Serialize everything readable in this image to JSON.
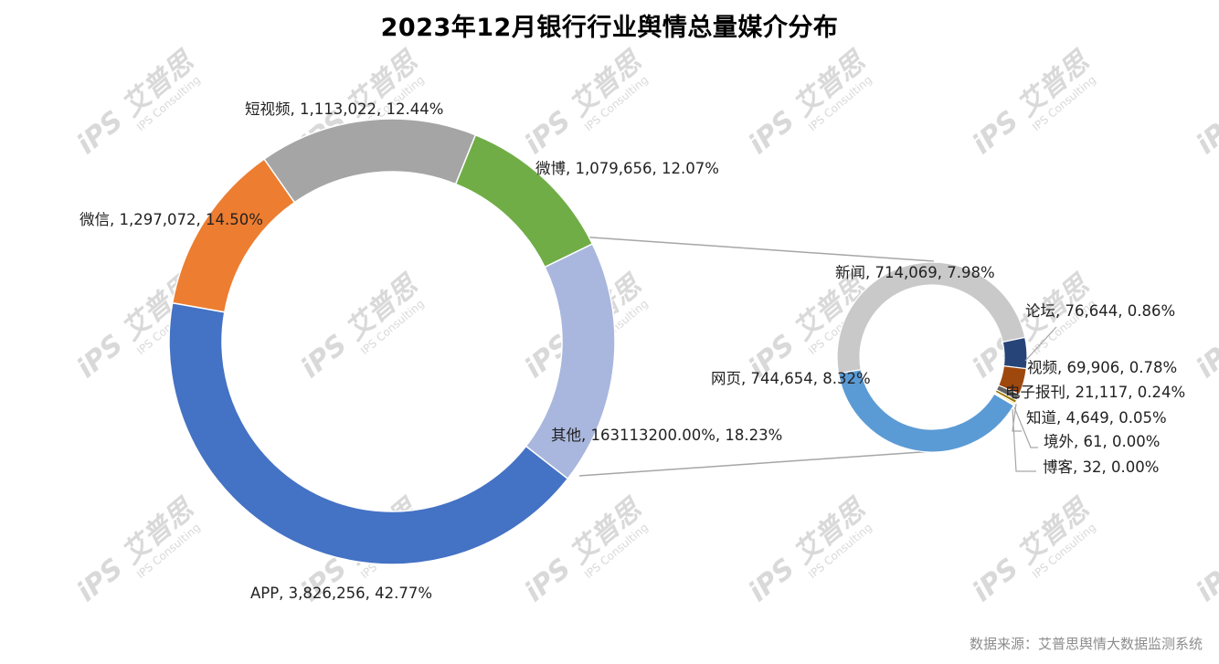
{
  "title": "2023年12月银行行业舆情总量媒介分布",
  "source": "数据来源：艾普思舆情大数据监测系统",
  "watermark": {
    "brand": "艾普思",
    "sub": "IPS Consulting"
  },
  "chart_data": {
    "type": "pie-of-pie",
    "title": "2023年12月银行行业舆情总量媒介分布",
    "main": [
      {
        "name": "APP",
        "value": 3826256,
        "label": "APP, 3,826,256, 42.77%",
        "color": "#4472C4",
        "pct": 42.77
      },
      {
        "name": "微信",
        "value": 1297072,
        "label": "微信, 1,297,072, 14.50%",
        "color": "#ED7D31",
        "pct": 14.5
      },
      {
        "name": "短视频",
        "value": 1113022,
        "label": "短视频, 1,113,022, 12.44%",
        "color": "#A5A5A5",
        "pct": 12.44
      },
      {
        "name": "微博",
        "value": 1079656,
        "label": "微博, 1,079,656, 12.07%",
        "color": "#70AD47",
        "pct": 12.07
      },
      {
        "name": "其他",
        "value": 1631132,
        "label": "其他, 163113200.00%, 18.23%",
        "color": "#A9B7DE",
        "pct": 18.23
      }
    ],
    "secondary": [
      {
        "name": "新闻",
        "value": 714069,
        "label": "新闻, 714,069, 7.98%",
        "color": "#C9C9C9",
        "pct": 7.98
      },
      {
        "name": "论坛",
        "value": 76644,
        "label": "论坛, 76,644, 0.86%",
        "color": "#264478",
        "pct": 0.86
      },
      {
        "name": "视频",
        "value": 69906,
        "label": "视频, 69,906, 0.78%",
        "color": "#9E480E",
        "pct": 0.78
      },
      {
        "name": "电子报刊",
        "value": 21117,
        "label": "电子报刊, 21,117, 0.24%",
        "color": "#636363",
        "pct": 0.24
      },
      {
        "name": "知道",
        "value": 4649,
        "label": "知道, 4,649, 0.05%",
        "color": "#997300",
        "pct": 0.05
      },
      {
        "name": "境外",
        "value": 61,
        "label": "境外, 61, 0.00%",
        "color": "#FFC000",
        "pct": 0.0
      },
      {
        "name": "博客",
        "value": 32,
        "label": "博客, 32, 0.00%",
        "color": "#FFD966",
        "pct": 0.0
      },
      {
        "name": "网页",
        "value": 744654,
        "label": "网页, 744,654, 8.32%",
        "color": "#5B9BD5",
        "pct": 8.32
      }
    ]
  }
}
